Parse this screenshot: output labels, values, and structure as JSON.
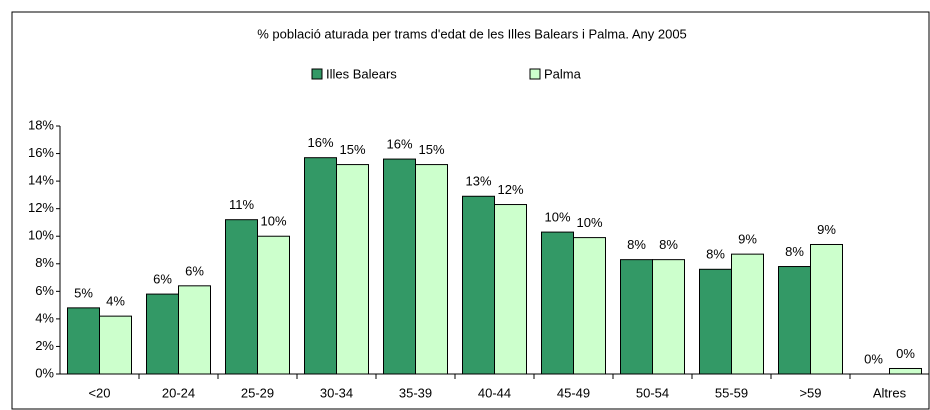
{
  "chart_data": {
    "type": "bar",
    "title": "% població aturada per trams d'edat de les Illes Balears i Palma. Any 2005",
    "categories": [
      "<20",
      "20-24",
      "25-29",
      "30-34",
      "35-39",
      "40-44",
      "45-49",
      "50-54",
      "55-59",
      ">59",
      "Altres"
    ],
    "series": [
      {
        "name": "Illes Balears",
        "color": "#339966",
        "values": [
          4.8,
          5.8,
          11.2,
          15.7,
          15.6,
          12.9,
          10.3,
          8.3,
          7.6,
          7.8,
          0
        ],
        "value_labels": [
          "5%",
          "6%",
          "11%",
          "16%",
          "16%",
          "13%",
          "10%",
          "8%",
          "8%",
          "8%",
          "0%"
        ]
      },
      {
        "name": "Palma",
        "color": "#ccffcc",
        "values": [
          4.2,
          6.4,
          10.0,
          15.2,
          15.2,
          12.3,
          9.9,
          8.3,
          8.7,
          9.4,
          0.4
        ],
        "value_labels": [
          "4%",
          "6%",
          "10%",
          "15%",
          "15%",
          "12%",
          "10%",
          "8%",
          "9%",
          "9%",
          "0%"
        ]
      }
    ],
    "ylim": [
      0,
      18
    ],
    "yticks": [
      {
        "value": 0,
        "label": "0%"
      },
      {
        "value": 2,
        "label": "2%"
      },
      {
        "value": 4,
        "label": "4%"
      },
      {
        "value": 6,
        "label": "6%"
      },
      {
        "value": 8,
        "label": "8%"
      },
      {
        "value": 10,
        "label": "10%"
      },
      {
        "value": 12,
        "label": "12%"
      },
      {
        "value": 14,
        "label": "14%"
      },
      {
        "value": 16,
        "label": "16%"
      },
      {
        "value": 18,
        "label": "18%"
      }
    ],
    "legend": "top"
  }
}
